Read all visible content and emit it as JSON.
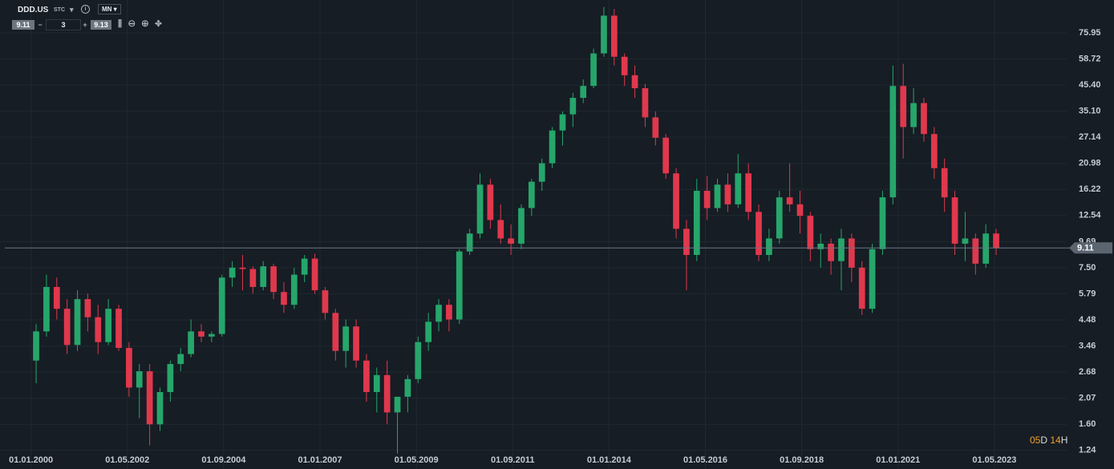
{
  "toolbar": {
    "symbol": "DDD.US",
    "market": "STC",
    "info": "i",
    "interval": "MN",
    "bid": "9.11",
    "quantity": "3",
    "ask": "9.13",
    "minus": "−",
    "plus": "+"
  },
  "timer": {
    "days": "05",
    "days_unit": "D",
    "hours": "14",
    "hours_unit": "H"
  },
  "chart_data": {
    "type": "candlestick",
    "log_scale": true,
    "grid": true,
    "up_color": "#26a66b",
    "down_color": "#e0384d",
    "x": [
      "01.01.2000",
      "01.04.2000",
      "01.07.2000",
      "01.10.2000",
      "01.01.2001",
      "01.04.2001",
      "01.07.2001",
      "01.10.2001",
      "01.01.2002",
      "01.04.2002",
      "01.07.2002",
      "01.10.2002",
      "01.01.2003",
      "01.04.2003",
      "01.07.2003",
      "01.10.2003",
      "01.01.2004",
      "01.04.2004",
      "01.07.2004",
      "01.10.2004",
      "01.01.2005",
      "01.04.2005",
      "01.07.2005",
      "01.10.2005",
      "01.01.2006",
      "01.04.2006",
      "01.07.2006",
      "01.10.2006",
      "01.01.2007",
      "01.04.2007",
      "01.07.2007",
      "01.10.2007",
      "01.01.2008",
      "01.04.2008",
      "01.07.2008",
      "01.10.2008",
      "01.01.2009",
      "01.04.2009",
      "01.07.2009",
      "01.10.2009",
      "01.01.2010",
      "01.04.2010",
      "01.07.2010",
      "01.10.2010",
      "01.01.2011",
      "01.04.2011",
      "01.07.2011",
      "01.10.2011",
      "01.01.2012",
      "01.04.2012",
      "01.07.2012",
      "01.10.2012",
      "01.01.2013",
      "01.04.2013",
      "01.07.2013",
      "01.10.2013",
      "01.01.2014",
      "01.04.2014",
      "01.07.2014",
      "01.10.2014",
      "01.01.2015",
      "01.04.2015",
      "01.07.2015",
      "01.10.2015",
      "01.01.2016",
      "01.04.2016",
      "01.07.2016",
      "01.10.2016",
      "01.01.2017",
      "01.04.2017",
      "01.07.2017",
      "01.10.2017",
      "01.01.2018",
      "01.04.2018",
      "01.07.2018",
      "01.10.2018",
      "01.01.2019",
      "01.04.2019",
      "01.07.2019",
      "01.10.2019",
      "01.01.2020",
      "01.04.2020",
      "01.07.2020",
      "01.10.2020",
      "01.01.2021",
      "01.04.2021",
      "01.07.2021",
      "01.10.2021",
      "01.01.2022",
      "01.04.2022",
      "01.07.2022",
      "01.10.2022",
      "01.01.2023",
      "01.04.2023"
    ],
    "open": [
      3.0,
      4.0,
      6.2,
      5.0,
      3.5,
      5.5,
      4.6,
      3.6,
      5.0,
      3.4,
      2.3,
      2.7,
      1.6,
      2.2,
      2.9,
      3.2,
      4.0,
      3.8,
      3.9,
      6.8,
      7.5,
      7.4,
      6.2,
      7.6,
      5.9,
      5.2,
      7.0,
      8.2,
      6.0,
      4.8,
      3.3,
      4.2,
      3.0,
      2.2,
      2.6,
      1.8,
      2.1,
      2.5,
      3.6,
      4.4,
      5.2,
      4.5,
      8.8,
      10.5,
      17.0,
      12.0,
      10.0,
      9.5,
      13.5,
      17.5,
      21.0,
      29.0,
      34.0,
      40.0,
      45.0,
      62.0,
      90.0,
      60.0,
      50.0,
      44.0,
      33.0,
      27.0,
      19.0,
      11.0,
      8.5,
      16.0,
      13.5,
      17.0,
      14.0,
      19.0,
      13.0,
      8.5,
      10.0,
      15.0,
      14.0,
      12.5,
      9.0,
      9.5,
      8.0,
      10.0,
      7.5,
      5.0,
      9.0,
      15.0,
      45.0,
      30.0,
      38.0,
      28.0,
      20.0,
      15.0,
      9.5,
      10.0,
      7.8,
      10.5
    ],
    "high": [
      4.3,
      7.0,
      6.8,
      5.5,
      6.0,
      5.8,
      5.2,
      5.5,
      5.2,
      3.6,
      2.9,
      2.9,
      2.3,
      3.0,
      3.4,
      4.5,
      4.3,
      4.0,
      7.0,
      8.0,
      8.5,
      7.6,
      8.0,
      7.8,
      6.5,
      7.5,
      8.5,
      8.6,
      6.2,
      5.0,
      4.5,
      4.5,
      3.2,
      2.8,
      3.0,
      2.0,
      2.6,
      3.8,
      4.8,
      5.5,
      5.5,
      9.0,
      11.0,
      19.0,
      18.0,
      14.0,
      11.5,
      14.0,
      18.0,
      22.0,
      30.0,
      35.0,
      42.0,
      48.0,
      65.0,
      98.0,
      96.0,
      62.0,
      55.0,
      46.0,
      35.0,
      28.0,
      20.0,
      12.0,
      18.0,
      18.5,
      18.0,
      19.0,
      23.0,
      21.0,
      14.0,
      11.0,
      16.0,
      21.0,
      16.0,
      13.0,
      10.5,
      10.0,
      11.0,
      10.5,
      8.0,
      9.5,
      16.0,
      55.0,
      56.0,
      44.0,
      40.0,
      30.0,
      22.0,
      16.0,
      13.0,
      10.5,
      11.5,
      11.0
    ],
    "low": [
      2.4,
      3.8,
      4.5,
      3.2,
      3.3,
      4.0,
      3.2,
      3.5,
      3.3,
      2.1,
      1.7,
      1.3,
      1.5,
      2.0,
      2.7,
      3.1,
      3.6,
      3.6,
      3.8,
      6.2,
      6.0,
      5.8,
      6.0,
      5.5,
      4.8,
      5.0,
      6.5,
      5.8,
      4.5,
      3.0,
      2.8,
      2.8,
      2.0,
      1.8,
      1.6,
      1.2,
      1.8,
      2.4,
      3.3,
      4.0,
      4.0,
      4.3,
      8.5,
      10.0,
      11.0,
      9.5,
      8.5,
      9.0,
      12.5,
      16.0,
      20.0,
      25.0,
      30.0,
      38.0,
      44.0,
      60.0,
      55.0,
      45.0,
      40.0,
      30.0,
      25.0,
      18.0,
      10.0,
      6.0,
      8.0,
      12.0,
      13.0,
      13.0,
      13.5,
      12.0,
      8.0,
      8.0,
      9.5,
      13.0,
      10.5,
      8.0,
      7.5,
      7.0,
      6.0,
      6.5,
      4.7,
      4.8,
      8.5,
      14.0,
      22.0,
      28.0,
      26.0,
      18.0,
      13.0,
      8.5,
      8.0,
      7.0,
      7.5,
      8.5
    ],
    "close": [
      4.0,
      6.2,
      5.0,
      3.5,
      5.5,
      4.6,
      3.6,
      5.0,
      3.4,
      2.3,
      2.7,
      1.6,
      2.2,
      2.9,
      3.2,
      4.0,
      3.8,
      3.9,
      6.8,
      7.5,
      7.4,
      6.2,
      7.6,
      5.9,
      5.2,
      7.0,
      8.2,
      6.0,
      4.8,
      3.3,
      4.2,
      3.0,
      2.2,
      2.6,
      1.8,
      2.1,
      2.5,
      3.6,
      4.4,
      5.2,
      4.5,
      8.8,
      10.5,
      17.0,
      12.0,
      10.0,
      9.5,
      13.5,
      17.5,
      21.0,
      29.0,
      34.0,
      40.0,
      45.0,
      62.0,
      90.0,
      60.0,
      50.0,
      44.0,
      33.0,
      27.0,
      19.0,
      11.0,
      8.5,
      16.0,
      13.5,
      17.0,
      14.0,
      19.0,
      13.0,
      8.5,
      10.0,
      15.0,
      14.0,
      12.5,
      9.0,
      9.5,
      8.0,
      10.0,
      7.5,
      5.0,
      9.0,
      15.0,
      45.0,
      30.0,
      38.0,
      28.0,
      20.0,
      15.0,
      9.5,
      10.0,
      7.8,
      10.5,
      9.11
    ],
    "last_price": 9.11,
    "ylim": [
      1.03,
      105
    ],
    "yticks": [
      1.24,
      {
        "value": 1.6,
        "label": "1.60"
      },
      2.07,
      2.68,
      3.46,
      4.48,
      5.79,
      {
        "value": 7.5,
        "label": "7.50"
      },
      9.69,
      12.54,
      16.22,
      20.98,
      27.14,
      {
        "value": 35.1,
        "label": "35.10"
      },
      {
        "value": 45.4,
        "label": "45.40"
      },
      58.72,
      75.95
    ],
    "xlim": [
      "01.04.1999",
      "01.02.2025"
    ],
    "xticks": [
      "01.01.2000",
      "01.05.2002",
      "01.09.2004",
      "01.01.2007",
      "01.05.2009",
      "01.09.2011",
      "01.01.2014",
      "01.05.2016",
      "01.09.2018",
      "01.01.2021",
      "01.05.2023"
    ]
  }
}
